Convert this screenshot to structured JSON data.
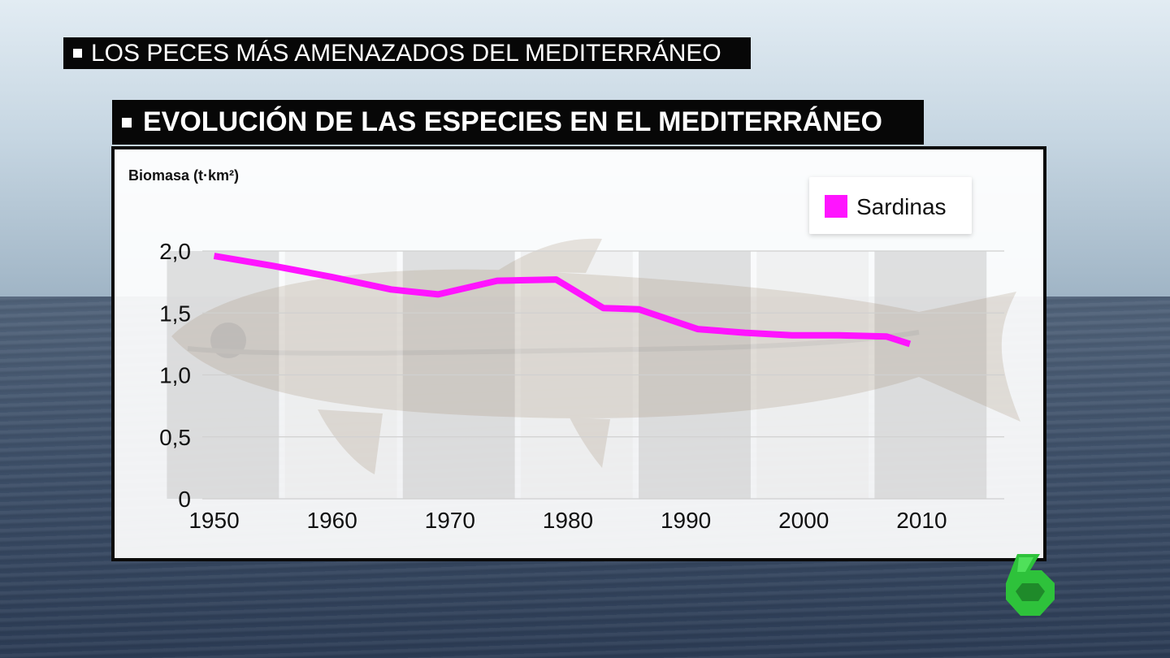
{
  "banners": {
    "top": "LOS PECES MÁS AMENAZADOS DEL MEDITERRÁNEO",
    "chart_title": "EVOLUCIÓN DE LAS ESPECIES EN EL MEDITERRÁNEO"
  },
  "logo": {
    "icon": "lasexta-logo-icon",
    "color": "#2ec23b"
  },
  "chart_data": {
    "type": "line",
    "title": "EVOLUCIÓN DE LAS ESPECIES EN EL MEDITERRÁNEO",
    "ylabel": "Biomasa (t·km²)",
    "xlabel": "",
    "x_ticks": [
      "1950",
      "1960",
      "1970",
      "1980",
      "1990",
      "2000",
      "2010"
    ],
    "x_tick_values": [
      1950,
      1960,
      1970,
      1980,
      1990,
      2000,
      2010
    ],
    "y_ticks": [
      "0",
      "0,5",
      "1,0",
      "1,5",
      "2,0"
    ],
    "y_tick_values": [
      0,
      0.5,
      1.0,
      1.5,
      2.0
    ],
    "xlim": [
      1949,
      2017
    ],
    "ylim": [
      0,
      2.0
    ],
    "grid": true,
    "legend": "top-right",
    "series": [
      {
        "name": "Sardinas",
        "color": "#ff14ff",
        "x": [
          1950,
          1955,
          1960,
          1965,
          1969,
          1974,
          1979,
          1983,
          1986,
          1991,
          1995,
          1999,
          2003,
          2007,
          2009
        ],
        "y": [
          1.96,
          1.88,
          1.79,
          1.69,
          1.65,
          1.76,
          1.77,
          1.54,
          1.53,
          1.37,
          1.34,
          1.32,
          1.32,
          1.31,
          1.25
        ]
      }
    ]
  }
}
